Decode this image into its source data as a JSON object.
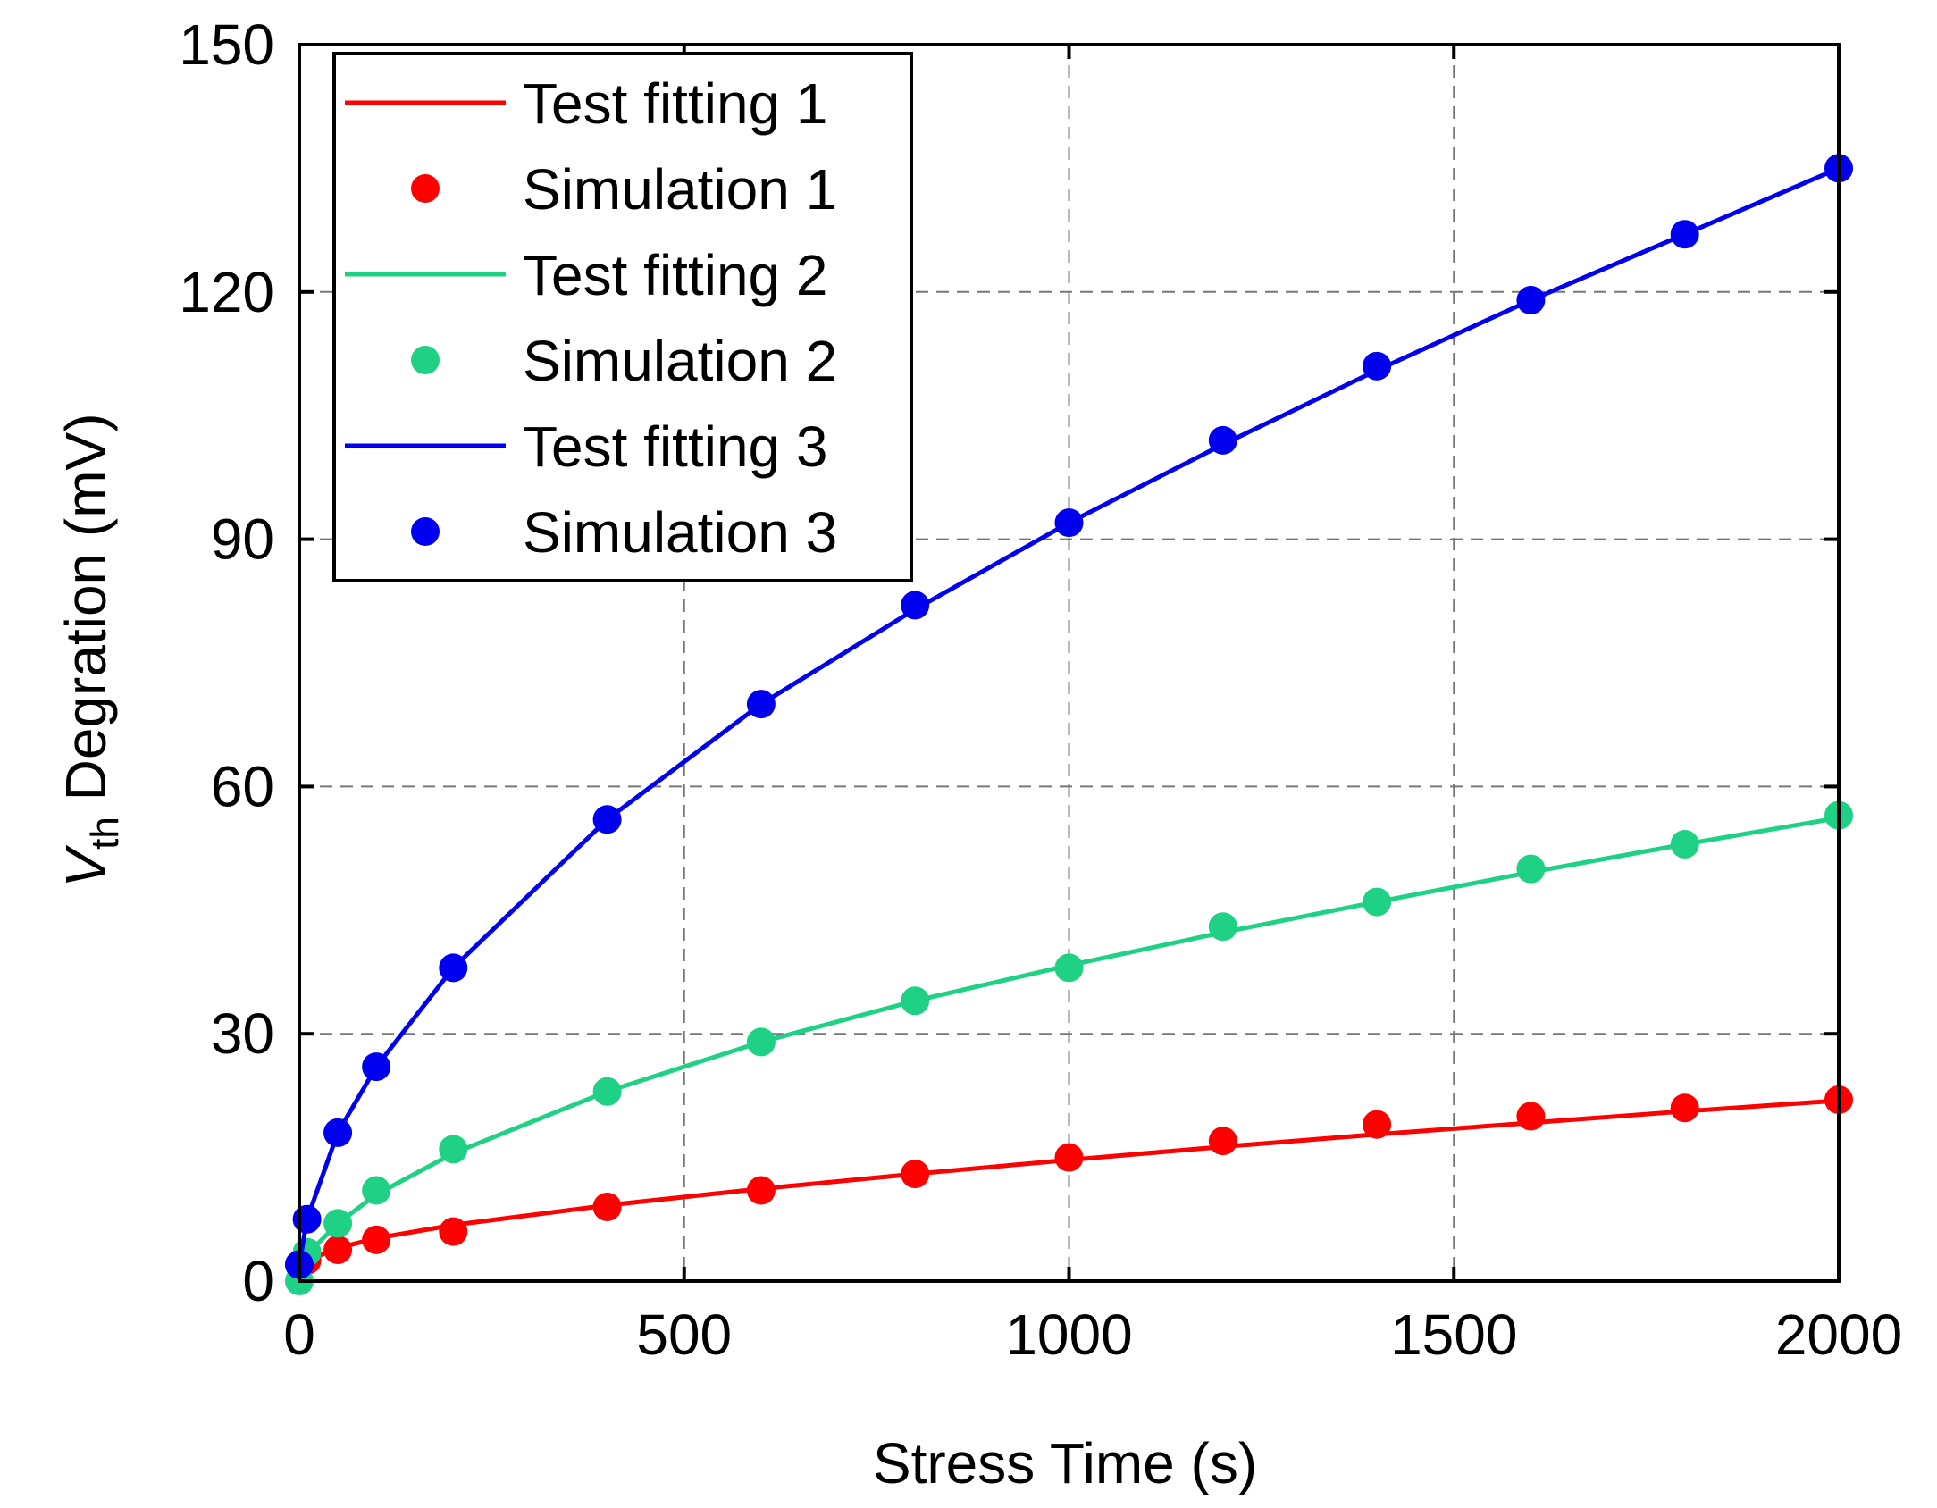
{
  "chart_data": {
    "type": "line",
    "title": "",
    "xlabel": "Stress Time (s)",
    "ylabel": {
      "main": "V",
      "subscript": "th",
      "rest": " Degration (mV)"
    },
    "xlim": [
      0,
      2000
    ],
    "ylim": [
      0,
      150
    ],
    "xticks": [
      0,
      500,
      1000,
      1500,
      2000
    ],
    "yticks": [
      0,
      30,
      60,
      90,
      120,
      150
    ],
    "grid": true,
    "legend_position": "top-left",
    "sim_x": [
      0,
      10,
      50,
      100,
      200,
      400,
      600,
      800,
      1000,
      1200,
      1400,
      1600,
      1800,
      2000
    ],
    "series": [
      {
        "fit_name": "Test fitting 1",
        "sim_name": "Simulation 1",
        "color": "#ff0000",
        "fit_x": [
          0,
          10,
          50,
          100,
          200,
          400,
          600,
          800,
          1000,
          1200,
          1400,
          1600,
          1800,
          2000
        ],
        "fit_y": [
          0,
          2.5,
          4.0,
          5.2,
          6.8,
          9.2,
          11.2,
          13.0,
          14.7,
          16.3,
          17.8,
          19.2,
          20.6,
          21.9
        ],
        "sim_y": [
          2,
          2.5,
          3.8,
          5,
          6,
          9,
          11,
          13,
          15,
          17,
          19,
          20,
          21,
          22
        ]
      },
      {
        "fit_name": "Test fitting 2",
        "sim_name": "Simulation 2",
        "color": "#1fd184",
        "fit_x": [
          0,
          10,
          50,
          100,
          200,
          400,
          600,
          800,
          1000,
          1200,
          1400,
          1600,
          1800,
          2000
        ],
        "fit_y": [
          0,
          3.2,
          7.0,
          10.5,
          15.5,
          23.0,
          29.0,
          34.0,
          38.3,
          42.3,
          46.0,
          49.6,
          53.0,
          56.2
        ],
        "sim_y": [
          0,
          3.5,
          7,
          11,
          16,
          23,
          29,
          34,
          38,
          43,
          46,
          50,
          53,
          56.5
        ]
      },
      {
        "fit_name": "Test fitting 3",
        "sim_name": "Simulation 3",
        "color": "#0000ee",
        "fit_x": [
          0,
          10,
          50,
          100,
          200,
          400,
          600,
          800,
          1000,
          1200,
          1400,
          1600,
          1800,
          2000
        ],
        "fit_y": [
          2,
          7.5,
          18,
          26,
          38,
          56,
          70,
          81.5,
          92,
          101.5,
          110.5,
          119,
          127,
          135
        ],
        "sim_y": [
          2,
          7.5,
          18,
          26,
          38,
          56,
          70,
          82,
          92,
          102,
          111,
          119,
          127,
          135
        ]
      }
    ]
  }
}
